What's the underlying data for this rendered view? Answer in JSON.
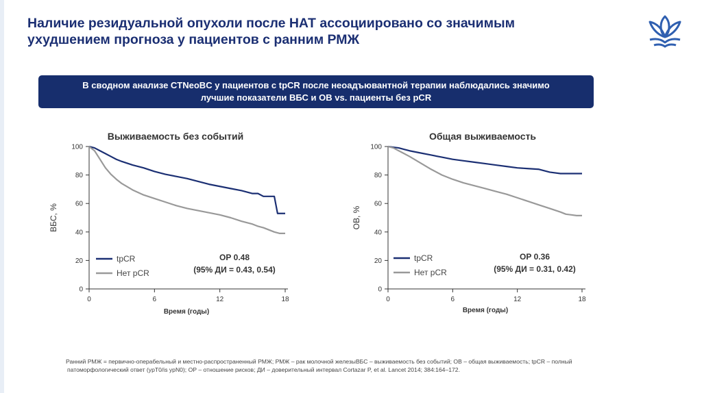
{
  "slide": {
    "title_line1": "Наличие резидуальной опухоли после НАТ ассоциировано со значимым",
    "title_line2": "ухудшением прогноза у пациентов с ранним РМЖ",
    "banner_line1": "В сводном анализе CTNeoBC у пациентов с tpCR после неоадъювантной терапии наблюдались значимо",
    "banner_line2": "лучшие показатели ВБС и ОВ vs. пациенты без pCR",
    "footnote_line1": "Ранний РМЖ = первично-операбельный и местно-распространенный РМЖ; РМЖ – рак молочной железыВБС – выживаемость без событий; ОВ – общая выживаемость; tpCR – полный",
    "footnote_line2": "патоморфологический ответ (ypT0/is ypN0); ОР – отношение рисков; ДИ – доверительный интервал Cortazar P, et al. Lancet 2014; 384:164–172.",
    "colors": {
      "title": "#1b2f73",
      "banner": "#172e6d",
      "tpcr": "#1b2f73",
      "no_pcr": "#999999"
    },
    "logo_icon": "lotus-flower-icon"
  },
  "chart_data": [
    {
      "type": "line",
      "title": "Выживаемость без событий",
      "xlabel": "Время (годы)",
      "ylabel": "ВБС, %",
      "xlim": [
        0,
        18
      ],
      "ylim": [
        0,
        100
      ],
      "xticks": [
        "0",
        "6",
        "12",
        "18"
      ],
      "yticks": [
        "0",
        "20",
        "40",
        "60",
        "80",
        "100"
      ],
      "series": [
        {
          "name": "tpCR",
          "color": "#1b2f73",
          "x": [
            0,
            0.5,
            1,
            1.5,
            2,
            2.5,
            3,
            4,
            5,
            6,
            7,
            8,
            9,
            10,
            11,
            12,
            13,
            14,
            15,
            15.5,
            16,
            17,
            17.3,
            17.5,
            18
          ],
          "y": [
            100,
            99,
            97,
            95,
            93,
            91,
            89.5,
            87,
            85,
            82.5,
            80.5,
            79,
            77.5,
            75.5,
            73.5,
            72,
            70.5,
            69,
            67,
            67,
            65,
            65,
            53,
            53,
            53
          ]
        },
        {
          "name": "Нет pCR",
          "color": "#999999",
          "x": [
            0,
            0.5,
            1,
            1.5,
            2,
            2.5,
            3,
            4,
            5,
            6,
            7,
            8,
            9,
            10,
            11,
            12,
            13,
            14,
            15,
            15.5,
            16,
            16.5,
            17,
            17.5,
            18
          ],
          "y": [
            100,
            97,
            91,
            85,
            80.5,
            77,
            74,
            69.5,
            66,
            63.5,
            61,
            58.5,
            56.5,
            55,
            53.5,
            52,
            50,
            47.5,
            45.5,
            44,
            43,
            41.5,
            40,
            39,
            39
          ]
        }
      ],
      "legend": [
        "tpCR",
        "Нет pCR"
      ],
      "annotation_line1": "ОР 0.48",
      "annotation_line2": "(95% ДИ = 0.43, 0.54)"
    },
    {
      "type": "line",
      "title": "Общая выживаемость",
      "xlabel": "Время (годы)",
      "ylabel": "ОВ, %",
      "xlim": [
        0,
        18
      ],
      "ylim": [
        0,
        100
      ],
      "xticks": [
        "0",
        "6",
        "12",
        "18"
      ],
      "yticks": [
        "0",
        "20",
        "40",
        "60",
        "80",
        "100"
      ],
      "series": [
        {
          "name": "tpCR",
          "color": "#1b2f73",
          "x": [
            0,
            0.5,
            1,
            1.5,
            2,
            3,
            4,
            5,
            6,
            7,
            8,
            9,
            10,
            11,
            12,
            13,
            14,
            15,
            16,
            17,
            18
          ],
          "y": [
            100,
            99.5,
            99,
            98,
            97,
            95.5,
            94,
            92.5,
            91,
            90,
            89,
            88,
            87,
            86,
            85,
            84.5,
            84,
            82,
            81,
            81,
            81
          ]
        },
        {
          "name": "Нет pCR",
          "color": "#999999",
          "x": [
            0,
            0.5,
            1,
            1.5,
            2,
            3,
            4,
            5,
            6,
            7,
            8,
            9,
            10,
            11,
            12,
            13,
            14,
            15,
            16,
            16.5,
            17,
            17.5,
            18
          ],
          "y": [
            100,
            99,
            97,
            95,
            93,
            88.5,
            84,
            80,
            77,
            74.5,
            72.5,
            70.5,
            68.5,
            66.5,
            64,
            61.5,
            59,
            56.5,
            54,
            52.5,
            52,
            51.5,
            51.5
          ]
        }
      ],
      "legend": [
        "tpCR",
        "Нет pCR"
      ],
      "annotation_line1": "ОР 0.36",
      "annotation_line2": "(95% ДИ = 0.31, 0.42)"
    }
  ]
}
